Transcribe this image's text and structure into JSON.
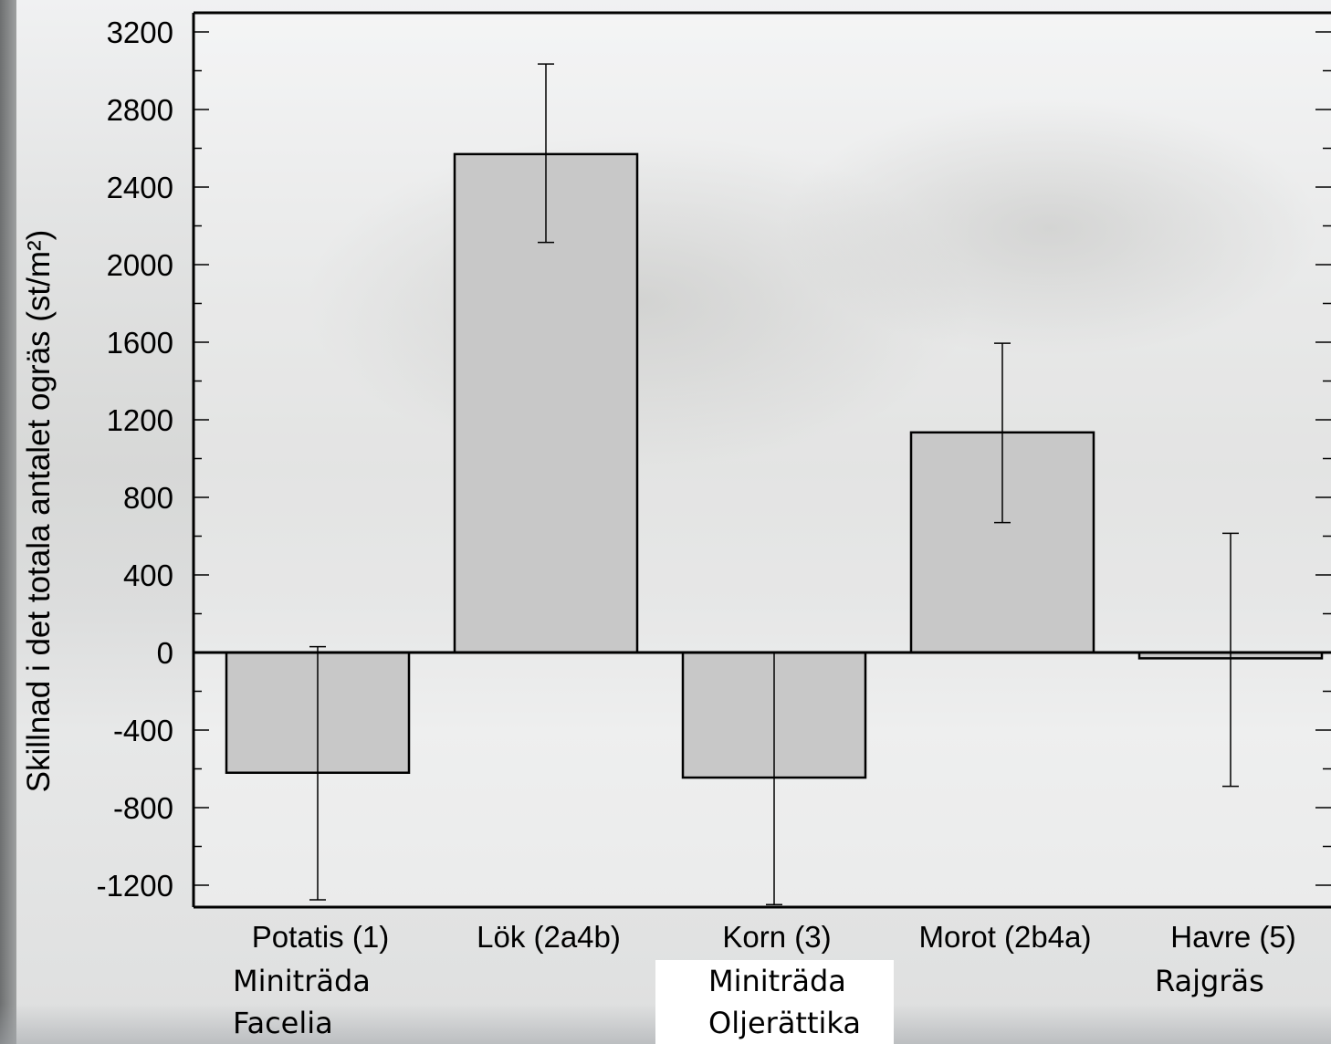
{
  "chart_data": {
    "type": "bar",
    "ylabel": "Skillnad i det totala antalet ogräs (st/m²)",
    "xlabel": "",
    "ylim": [
      -1320,
      3300
    ],
    "yticks": [
      3200,
      2800,
      2400,
      2000,
      1600,
      1200,
      800,
      400,
      0,
      -400,
      -800,
      -1200
    ],
    "grid": false,
    "categories": [
      "Potatis (1)",
      "Lök (2a4b)",
      "Korn (3)",
      "Morot (2b4a)",
      "Havre (5)"
    ],
    "sublabels": [
      [
        "Miniträda",
        "Facelia"
      ],
      [],
      [
        "Miniträda",
        "Oljerättika"
      ],
      [],
      [
        "Rajgräs"
      ]
    ],
    "values": [
      -620,
      2570,
      -645,
      1135,
      -30
    ],
    "error_low": [
      -1275,
      2115,
      -1300,
      670,
      -690
    ],
    "error_high": [
      30,
      3035,
      0,
      1595,
      615
    ],
    "bar_color": "#c8c8c8",
    "edge_color": "#000000"
  }
}
